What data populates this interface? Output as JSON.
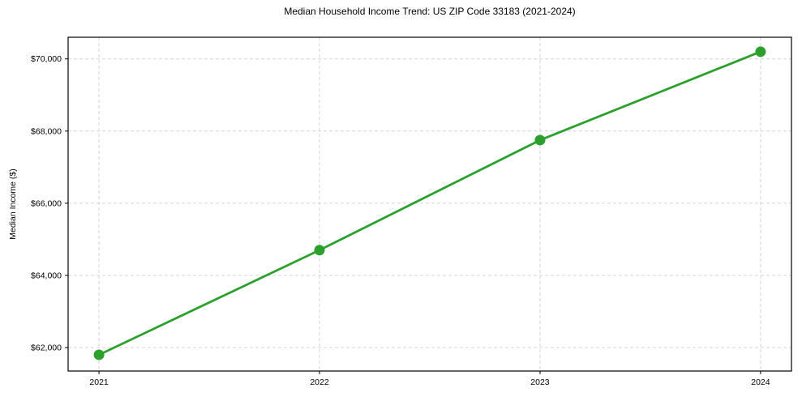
{
  "chart_data": {
    "type": "line",
    "title": "Median Household Income Trend: US ZIP Code 33183 (2021-2024)",
    "xlabel": "",
    "ylabel": "Median Income ($)",
    "x": [
      2021,
      2022,
      2023,
      2024
    ],
    "values": [
      61800,
      64700,
      67750,
      70200
    ],
    "x_ticks": {
      "values": [
        2021,
        2022,
        2023,
        2024
      ],
      "labels": [
        "2021",
        "2022",
        "2023",
        "2024"
      ]
    },
    "y_ticks": {
      "values": [
        62000,
        64000,
        66000,
        68000,
        70000
      ],
      "labels": [
        "$62,000",
        "$64,000",
        "$66,000",
        "$68,000",
        "$70,000"
      ]
    },
    "xlim": [
      2020.86,
      2024.14
    ],
    "ylim": [
      61350,
      70600
    ],
    "grid": true,
    "grid_style": "dashed",
    "legend": "none",
    "line_color": "#2ca02c",
    "marker_color": "#2ca02c",
    "grid_color": "#d4d4d4",
    "spine_color": "#000000",
    "marker": "circle",
    "marker_radius": 6.5,
    "line_width": 2.8
  }
}
